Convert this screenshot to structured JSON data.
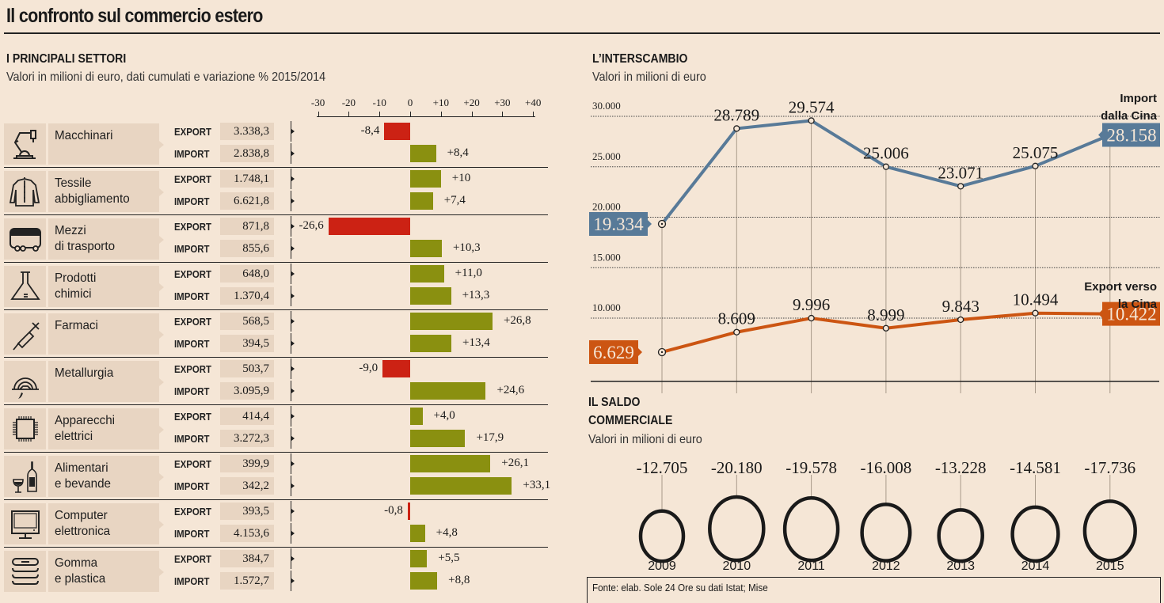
{
  "title": "Il confronto sul commercio estero",
  "sectors_panel": {
    "heading": "I PRINCIPALI SETTORI",
    "subtitle": "Valori in milioni di euro, dati cumulati e variazione % 2015/2014",
    "export_label": "EXPORT",
    "import_label": "IMPORT"
  },
  "interscambio_panel": {
    "heading": "L’INTERSCAMBIO",
    "subtitle": "Valori in milioni di euro"
  },
  "saldo_panel": {
    "heading_line1": "IL SALDO",
    "heading_line2": "COMMERCIALE",
    "subtitle": "Valori in milioni di euro"
  },
  "source": "Fonte: elab. Sole 24 Ore su dati Istat; Mise",
  "colors": {
    "background": "#f5e6d6",
    "panel": "#e8d5c2",
    "negative": "#cc2214",
    "positive": "#8a9010",
    "import_line": "#587a98",
    "export_line": "#cc5512",
    "text": "#1a1a1a"
  },
  "chart_data": [
    {
      "type": "bar",
      "title": "I PRINCIPALI SETTORI",
      "subtitle": "Valori in milioni di euro, dati cumulati e variazione % 2015/2014",
      "xlabel": "variazione % 2015/2014",
      "xlim": [
        -30,
        40
      ],
      "ticks": [
        "-30",
        "-20",
        "-10",
        "0",
        "+10",
        "+20",
        "+30",
        "+40"
      ],
      "tick_values": [
        -30,
        -20,
        -10,
        0,
        10,
        20,
        30,
        40
      ],
      "categories": [
        {
          "name": "Macchinari",
          "icon": "robot-arm-icon",
          "export_value": "3.338,3",
          "export_change": -8.4,
          "export_change_label": "-8,4",
          "import_value": "2.838,8",
          "import_change": 8.4,
          "import_change_label": "+8,4"
        },
        {
          "name": "Tessile\nabbigliamento",
          "icon": "jacket-icon",
          "export_value": "1.748,1",
          "export_change": 10,
          "export_change_label": "+10",
          "import_value": "6.621,8",
          "import_change": 7.4,
          "import_change_label": "+7,4"
        },
        {
          "name": "Mezzi\ndi trasporto",
          "icon": "bus-icon",
          "export_value": "871,8",
          "export_change": -26.6,
          "export_change_label": "-26,6",
          "import_value": "855,6",
          "import_change": 10.3,
          "import_change_label": "+10,3"
        },
        {
          "name": "Prodotti\nchimici",
          "icon": "flask-icon",
          "export_value": "648,0",
          "export_change": 11.0,
          "export_change_label": "+11,0",
          "import_value": "1.370,4",
          "import_change": 13.3,
          "import_change_label": "+13,3"
        },
        {
          "name": "Farmaci",
          "icon": "syringe-icon",
          "export_value": "568,5",
          "export_change": 26.8,
          "export_change_label": "+26,8",
          "import_value": "394,5",
          "import_change": 13.4,
          "import_change_label": "+13,4"
        },
        {
          "name": "Metallurgia",
          "icon": "helmet-icon",
          "export_value": "503,7",
          "export_change": -9.0,
          "export_change_label": "-9,0",
          "import_value": "3.095,9",
          "import_change": 24.6,
          "import_change_label": "+24,6"
        },
        {
          "name": "Apparecchi\nelettrici",
          "icon": "chip-icon",
          "export_value": "414,4",
          "export_change": 4.0,
          "export_change_label": "+4,0",
          "import_value": "3.272,3",
          "import_change": 17.9,
          "import_change_label": "+17,9"
        },
        {
          "name": "Alimentari\ne bevande",
          "icon": "wine-icon",
          "export_value": "399,9",
          "export_change": 26.1,
          "export_change_label": "+26,1",
          "import_value": "342,2",
          "import_change": 33.1,
          "import_change_label": "+33,1"
        },
        {
          "name": "Computer\nelettronica",
          "icon": "monitor-icon",
          "export_value": "393,5",
          "export_change": -0.8,
          "export_change_label": "-0,8",
          "import_value": "4.153,6",
          "import_change": 4.8,
          "import_change_label": "+4,8"
        },
        {
          "name": "Gomma\ne plastica",
          "icon": "stack-icon",
          "export_value": "384,7",
          "export_change": 5.5,
          "export_change_label": "+5,5",
          "import_value": "1.572,7",
          "import_change": 8.8,
          "import_change_label": "+8,8"
        }
      ]
    },
    {
      "type": "line",
      "title": "L’INTERSCAMBIO",
      "subtitle": "Valori in milioni di euro",
      "x": [
        2009,
        2010,
        2011,
        2012,
        2013,
        2014,
        2015
      ],
      "ylim": [
        5000,
        30000
      ],
      "yticks": [
        10000,
        15000,
        20000,
        25000,
        30000
      ],
      "ytick_labels": [
        "10.000",
        "15.000",
        "20.000",
        "25.000",
        "30.000"
      ],
      "grid": true,
      "series": [
        {
          "name": "Import\ndalla Cina",
          "values": [
            19334,
            28789,
            29574,
            25006,
            23071,
            25075,
            28158
          ],
          "labels": [
            "19.334",
            "28.789",
            "29.574",
            "25.006",
            "23.071",
            "25.075",
            "28.158"
          ]
        },
        {
          "name": "Export verso\nla Cina",
          "values": [
            6629,
            8609,
            9996,
            8999,
            9843,
            10494,
            10422
          ],
          "labels": [
            "6.629",
            "8.609",
            "9.996",
            "8.999",
            "9.843",
            "10.494",
            "10.422"
          ]
        }
      ]
    },
    {
      "type": "scatter",
      "title": "IL SALDO COMMERCIALE",
      "subtitle": "Valori in milioni di euro",
      "x": [
        2009,
        2010,
        2011,
        2012,
        2013,
        2014,
        2015
      ],
      "x_labels": [
        "2009",
        "2010",
        "2011",
        "2012",
        "2013",
        "2014",
        "2015"
      ],
      "values": [
        -12705,
        -20180,
        -19578,
        -16008,
        -13228,
        -14581,
        -17736
      ],
      "labels": [
        "-12.705",
        "-20.180",
        "-19.578",
        "-16.008",
        "-13.228",
        "-14.581",
        "-17.736"
      ],
      "encoding": "circle size"
    }
  ]
}
